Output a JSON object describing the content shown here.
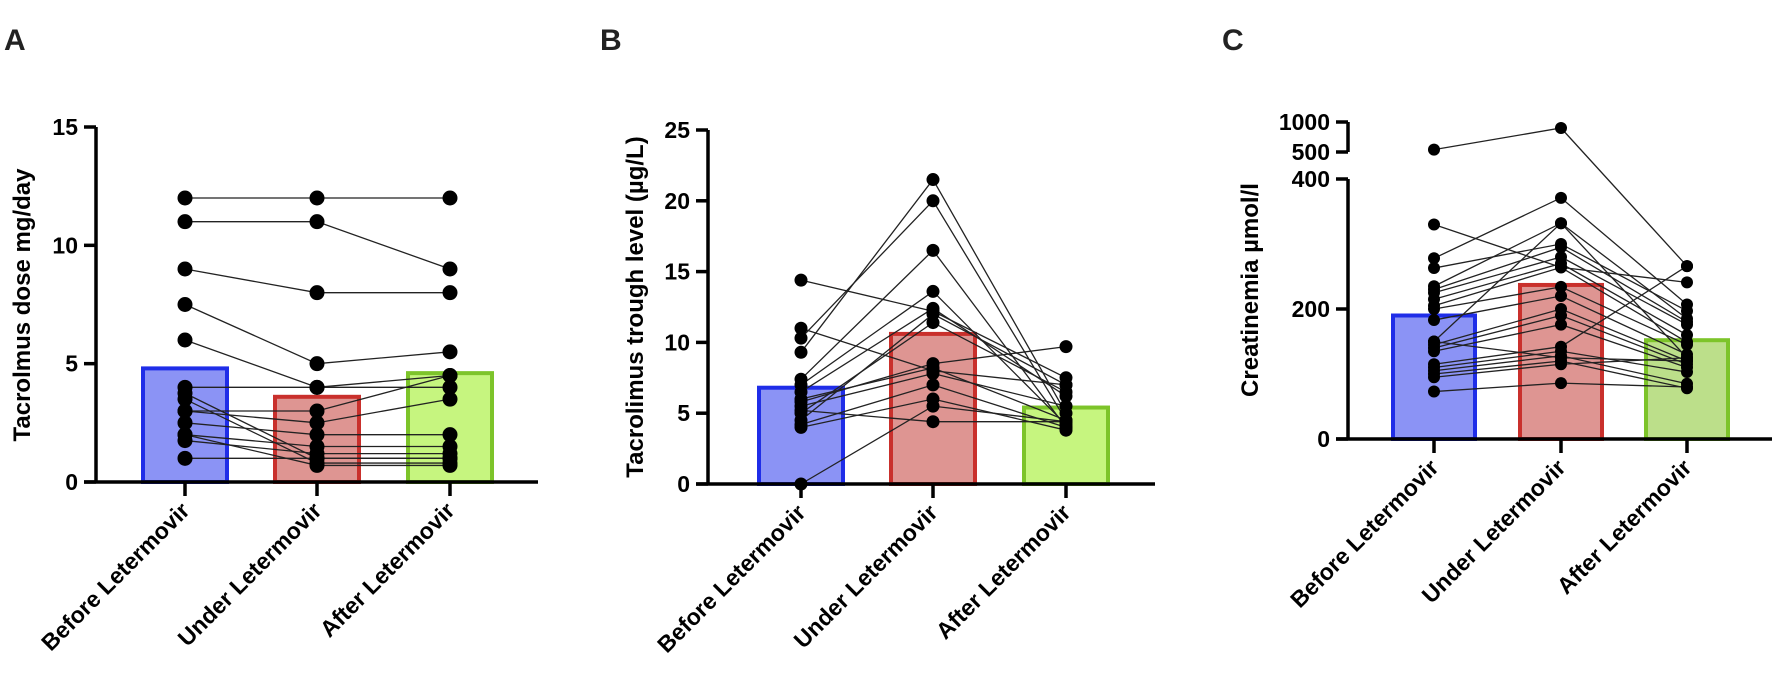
{
  "chart_data": [
    {
      "type": "bar",
      "panel_label": "A",
      "ylabel": "Tacrolmus dose mg/day",
      "categories": [
        "Before Letermovir",
        "Under Letermovir",
        "After Letermovir"
      ],
      "ylim": [
        0,
        15
      ],
      "yticks": [
        0,
        5,
        10,
        15
      ],
      "bar_values": [
        4.8,
        3.6,
        4.6
      ],
      "bar_colors": [
        {
          "fill": "#8b93f5",
          "stroke": "#1f2de8"
        },
        {
          "fill": "#de9592",
          "stroke": "#c9302c"
        },
        {
          "fill": "#c6f57f",
          "stroke": "#7dc42a"
        }
      ],
      "paired_points": [
        [
          12,
          12,
          12
        ],
        [
          11,
          11,
          9
        ],
        [
          9,
          8,
          8
        ],
        [
          7.5,
          5,
          5.5
        ],
        [
          6,
          4,
          4.5
        ],
        [
          4,
          4,
          4
        ],
        [
          3.75,
          1,
          1
        ],
        [
          3.5,
          0.8,
          0.8
        ],
        [
          3,
          3,
          4.5
        ],
        [
          3,
          2.5,
          3.5
        ],
        [
          2.5,
          2,
          2
        ],
        [
          2,
          1.5,
          1.5
        ],
        [
          1.75,
          1.2,
          1.2
        ],
        [
          1,
          1,
          1
        ],
        [
          2,
          0.7,
          0.7
        ]
      ],
      "grid": false
    },
    {
      "type": "bar",
      "panel_label": "B",
      "ylabel": "Tacrolimus trough level (µg/L)",
      "categories": [
        "Before Letermovir",
        "Under Letermovir",
        "After Letermovir"
      ],
      "ylim": [
        0,
        25
      ],
      "yticks": [
        0,
        5,
        10,
        15,
        20,
        25
      ],
      "bar_values": [
        6.8,
        10.6,
        5.4
      ],
      "bar_colors": [
        {
          "fill": "#8b93f5",
          "stroke": "#1f2de8"
        },
        {
          "fill": "#de9592",
          "stroke": "#c9302c"
        },
        {
          "fill": "#c6f57f",
          "stroke": "#7dc42a"
        }
      ],
      "paired_points": [
        [
          14.4,
          12.2,
          7.5
        ],
        [
          11,
          8,
          7
        ],
        [
          10.3,
          20,
          4.5
        ],
        [
          9.3,
          21.5,
          5
        ],
        [
          7.4,
          16.5,
          4
        ],
        [
          7,
          13.6,
          4.2
        ],
        [
          6.5,
          12.4,
          6.2
        ],
        [
          6,
          8.2,
          4.5
        ],
        [
          5.8,
          8.5,
          9.7
        ],
        [
          5.5,
          7.8,
          5.5
        ],
        [
          5,
          11.4,
          6.5
        ],
        [
          4.5,
          12,
          7
        ],
        [
          4.2,
          7,
          4
        ],
        [
          4,
          6,
          3.8
        ],
        [
          0,
          5.5,
          4.4
        ],
        [
          5.2,
          4.4,
          4.4
        ]
      ],
      "grid": false
    },
    {
      "type": "bar",
      "panel_label": "C",
      "ylabel": "Creatinemia µmol/l",
      "categories": [
        "Before Letermovir",
        "Under Letermovir",
        "After Letermovir"
      ],
      "ylim": [
        0,
        1000
      ],
      "y_axis_break": [
        400,
        500
      ],
      "yticks": [
        0,
        200,
        400,
        500,
        1000
      ],
      "bar_values": [
        190,
        237,
        152
      ],
      "bar_colors": [
        {
          "fill": "#8b93f5",
          "stroke": "#1f2de8"
        },
        {
          "fill": "#de9592",
          "stroke": "#c9302c"
        },
        {
          "fill": "#bcdf8a",
          "stroke": "#7dc42a"
        }
      ],
      "paired_points": [
        [
          540,
          900,
          266
        ],
        [
          330,
          264,
          241
        ],
        [
          278,
          371,
          207
        ],
        [
          263,
          300,
          197
        ],
        [
          235,
          332,
          185
        ],
        [
          230,
          295,
          180
        ],
        [
          225,
          280,
          176
        ],
        [
          215,
          270,
          160
        ],
        [
          205,
          264,
          149
        ],
        [
          200,
          234,
          145
        ],
        [
          183,
          220,
          130
        ],
        [
          150,
          332,
          125
        ],
        [
          145,
          200,
          120
        ],
        [
          140,
          190,
          115
        ],
        [
          135,
          176,
          110
        ],
        [
          115,
          142,
          266
        ],
        [
          110,
          135,
          103
        ],
        [
          105,
          128,
          85
        ],
        [
          100,
          120,
          78
        ],
        [
          95,
          115,
          125
        ],
        [
          73,
          86,
          80
        ],
        [
          150,
          125,
          120
        ]
      ],
      "grid": false
    }
  ]
}
